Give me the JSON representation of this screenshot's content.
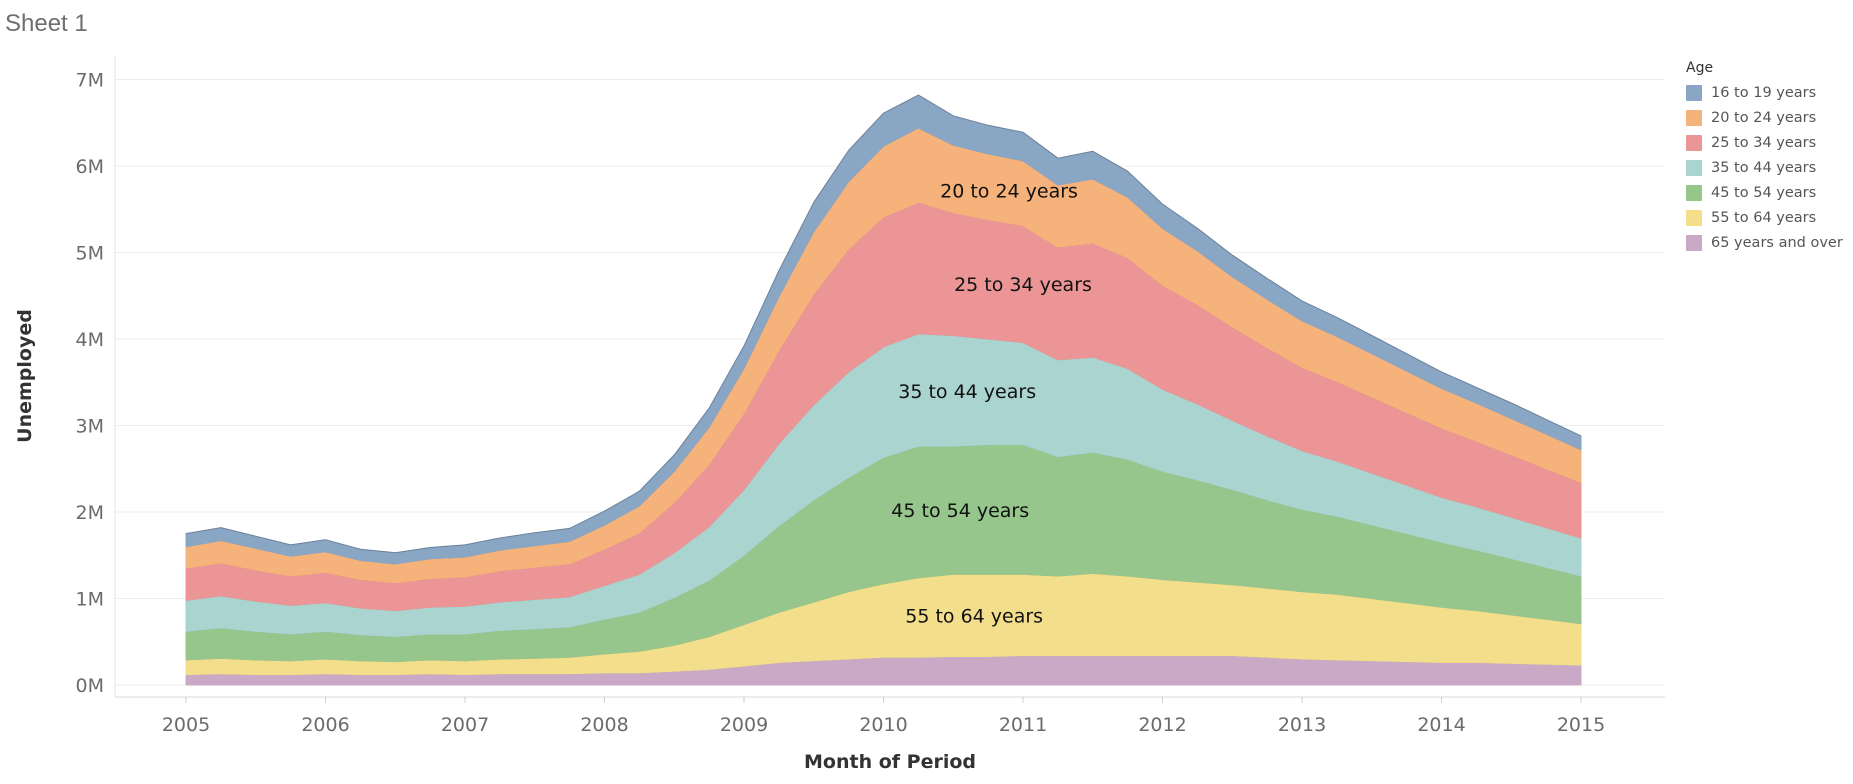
{
  "sheet_title": "Sheet 1",
  "legend": {
    "title": "Age",
    "items": [
      {
        "label": "16 to 19 years",
        "color": "#8aa6c5"
      },
      {
        "label": "20 to 24 years",
        "color": "#f6b27b"
      },
      {
        "label": "25 to 34 years",
        "color": "#ec9596"
      },
      {
        "label": "35 to 44 years",
        "color": "#a9d4d0"
      },
      {
        "label": "45 to 54 years",
        "color": "#96c68c"
      },
      {
        "label": "55 to 64 years",
        "color": "#f3de8c"
      },
      {
        "label": "65 years and over",
        "color": "#caa9c7"
      }
    ]
  },
  "chart_data": {
    "type": "area",
    "stacked": true,
    "xlabel": "Month of Period",
    "ylabel": "Unemployed",
    "x_ticks": [
      "2005",
      "2006",
      "2007",
      "2008",
      "2009",
      "2010",
      "2011",
      "2012",
      "2013",
      "2014",
      "2015"
    ],
    "y_ticks": [
      "0M",
      "1M",
      "2M",
      "3M",
      "4M",
      "5M",
      "6M",
      "7M"
    ],
    "ylim": [
      0,
      7.2
    ],
    "x_unit": "year",
    "x": [
      2005.0,
      2005.25,
      2005.5,
      2005.75,
      2006.0,
      2006.25,
      2006.5,
      2006.75,
      2007.0,
      2007.25,
      2007.5,
      2007.75,
      2008.0,
      2008.25,
      2008.5,
      2008.75,
      2009.0,
      2009.25,
      2009.5,
      2009.75,
      2010.0,
      2010.25,
      2010.5,
      2010.75,
      2011.0,
      2011.25,
      2011.5,
      2011.75,
      2012.0,
      2012.25,
      2012.5,
      2012.75,
      2013.0,
      2013.25,
      2013.5,
      2013.75,
      2014.0,
      2014.25,
      2014.5,
      2014.75,
      2015.0
    ],
    "series": [
      {
        "name": "65 years and over",
        "color": "#caa9c7",
        "values": [
          0.12,
          0.13,
          0.12,
          0.12,
          0.13,
          0.12,
          0.12,
          0.13,
          0.12,
          0.13,
          0.13,
          0.13,
          0.14,
          0.14,
          0.16,
          0.18,
          0.22,
          0.26,
          0.28,
          0.3,
          0.32,
          0.32,
          0.33,
          0.33,
          0.34,
          0.34,
          0.34,
          0.34,
          0.34,
          0.34,
          0.34,
          0.32,
          0.3,
          0.29,
          0.28,
          0.27,
          0.26,
          0.26,
          0.25,
          0.24,
          0.23
        ]
      },
      {
        "name": "55 to 64 years",
        "color": "#f3de8c",
        "values": [
          0.17,
          0.18,
          0.17,
          0.16,
          0.17,
          0.16,
          0.15,
          0.16,
          0.16,
          0.17,
          0.18,
          0.19,
          0.22,
          0.25,
          0.3,
          0.38,
          0.48,
          0.58,
          0.68,
          0.78,
          0.85,
          0.92,
          0.95,
          0.95,
          0.94,
          0.92,
          0.95,
          0.92,
          0.88,
          0.85,
          0.82,
          0.8,
          0.78,
          0.76,
          0.72,
          0.68,
          0.64,
          0.6,
          0.56,
          0.52,
          0.48
        ]
      },
      {
        "name": "45 to 54 years",
        "color": "#96c68c",
        "values": [
          0.33,
          0.35,
          0.33,
          0.31,
          0.32,
          0.3,
          0.29,
          0.3,
          0.31,
          0.33,
          0.34,
          0.35,
          0.4,
          0.45,
          0.55,
          0.65,
          0.8,
          1.0,
          1.18,
          1.32,
          1.46,
          1.52,
          1.48,
          1.5,
          1.5,
          1.38,
          1.4,
          1.35,
          1.25,
          1.18,
          1.1,
          1.02,
          0.95,
          0.9,
          0.85,
          0.8,
          0.75,
          0.7,
          0.65,
          0.6,
          0.55
        ]
      },
      {
        "name": "35 to 44 years",
        "color": "#a9d4d0",
        "values": [
          0.36,
          0.37,
          0.35,
          0.33,
          0.33,
          0.31,
          0.3,
          0.31,
          0.32,
          0.33,
          0.34,
          0.35,
          0.39,
          0.44,
          0.52,
          0.62,
          0.76,
          0.95,
          1.1,
          1.22,
          1.28,
          1.3,
          1.28,
          1.22,
          1.18,
          1.12,
          1.1,
          1.05,
          0.95,
          0.88,
          0.8,
          0.74,
          0.68,
          0.64,
          0.6,
          0.56,
          0.52,
          0.5,
          0.48,
          0.46,
          0.44
        ]
      },
      {
        "name": "25 to 34 years",
        "color": "#ec9596",
        "values": [
          0.37,
          0.38,
          0.36,
          0.34,
          0.35,
          0.33,
          0.32,
          0.33,
          0.34,
          0.36,
          0.37,
          0.38,
          0.42,
          0.48,
          0.58,
          0.72,
          0.88,
          1.08,
          1.28,
          1.42,
          1.5,
          1.52,
          1.42,
          1.38,
          1.35,
          1.3,
          1.32,
          1.28,
          1.2,
          1.15,
          1.08,
          1.02,
          0.96,
          0.92,
          0.88,
          0.84,
          0.8,
          0.76,
          0.72,
          0.68,
          0.64
        ]
      },
      {
        "name": "20 to 24 years",
        "color": "#f6b27b",
        "values": [
          0.25,
          0.26,
          0.25,
          0.23,
          0.24,
          0.22,
          0.22,
          0.23,
          0.23,
          0.24,
          0.25,
          0.26,
          0.28,
          0.31,
          0.36,
          0.43,
          0.52,
          0.62,
          0.72,
          0.78,
          0.82,
          0.86,
          0.78,
          0.76,
          0.75,
          0.72,
          0.74,
          0.7,
          0.66,
          0.62,
          0.58,
          0.56,
          0.54,
          0.52,
          0.5,
          0.48,
          0.46,
          0.44,
          0.42,
          0.4,
          0.38
        ]
      },
      {
        "name": "16 to 19 years",
        "color": "#8aa6c5",
        "values": [
          0.15,
          0.15,
          0.14,
          0.13,
          0.14,
          0.13,
          0.13,
          0.13,
          0.14,
          0.14,
          0.15,
          0.15,
          0.16,
          0.17,
          0.19,
          0.22,
          0.26,
          0.3,
          0.34,
          0.36,
          0.38,
          0.38,
          0.34,
          0.33,
          0.33,
          0.31,
          0.32,
          0.3,
          0.28,
          0.26,
          0.25,
          0.24,
          0.23,
          0.22,
          0.21,
          0.2,
          0.19,
          0.18,
          0.18,
          0.17,
          0.16
        ]
      }
    ],
    "area_labels": [
      {
        "text": "20 to 24 years",
        "series": "20 to 24 years",
        "x": 2010.9
      },
      {
        "text": "25 to 34 years",
        "series": "25 to 34 years",
        "x": 2011.0
      },
      {
        "text": "35 to 44 years",
        "series": "35 to 44 years",
        "x": 2010.6
      },
      {
        "text": "45 to 54 years",
        "series": "45 to 54 years",
        "x": 2010.55
      },
      {
        "text": "55 to 64 years",
        "series": "55 to 64 years",
        "x": 2010.65
      }
    ],
    "grid": true,
    "legend_position": "right"
  }
}
